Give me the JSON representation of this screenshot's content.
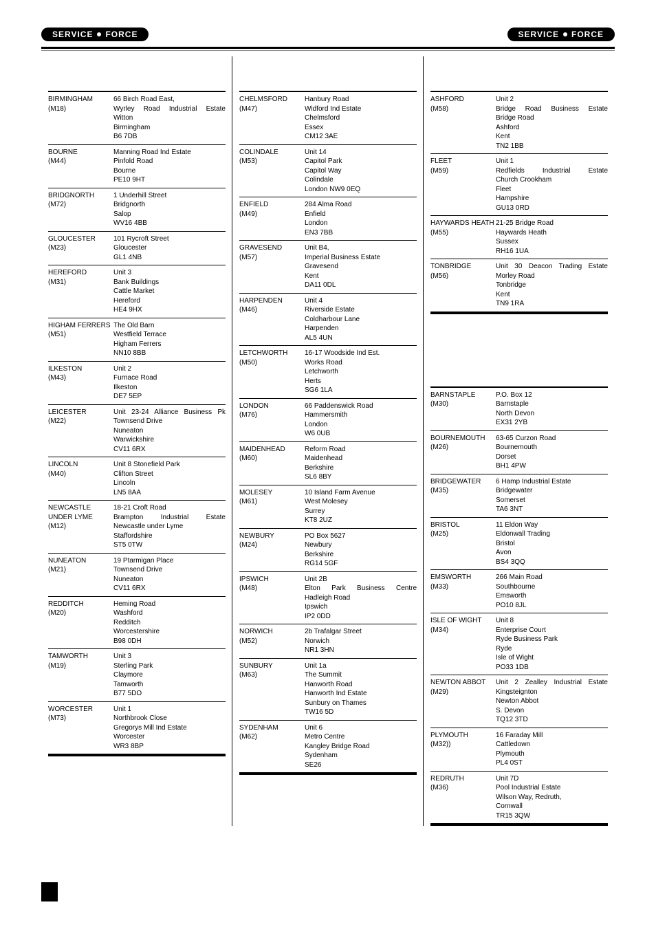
{
  "logo": {
    "text_left": "SERVICE",
    "text_right": "FORCE"
  },
  "columns": [
    {
      "sections": [
        {
          "entries": [
            {
              "name": "BIRMINGHAM",
              "code": "(M18)",
              "addr": [
                "66 Birch Road East,",
                "Wyrley Road Industrial Estate",
                "Witton",
                "Birmingham",
                "B6 7DB"
              ],
              "justify": [
                1
              ]
            },
            {
              "name": "BOURNE",
              "code": "(M44)",
              "addr": [
                "Manning Road Ind Estate",
                "Pinfold Road",
                "Bourne",
                "PE10 9HT"
              ]
            },
            {
              "name": "BRIDGNORTH",
              "code": "(M72)",
              "addr": [
                "1 Underhill Street",
                "Bridgnorth",
                "Salop",
                "WV16 4BB"
              ]
            },
            {
              "name": "GLOUCESTER",
              "code": "(M23)",
              "addr": [
                "101 Rycroft Street",
                "Gloucester",
                "GL1 4NB"
              ]
            },
            {
              "name": "HEREFORD",
              "code": "(M31)",
              "addr": [
                "Unit 3",
                "Bank Buildings",
                "Cattle Market",
                "Hereford",
                "HE4 9HX"
              ]
            },
            {
              "name": "HIGHAM FERRERS",
              "code": "(M51)",
              "addr": [
                "The Old Barn",
                "Westfield Terrace",
                "Higham Ferrers",
                "NN10 8BB"
              ]
            },
            {
              "name": "ILKESTON",
              "code": "(M43)",
              "addr": [
                "Unit 2",
                "Furnace Road",
                "Ilkeston",
                "DE7 5EP"
              ]
            },
            {
              "name": "LEICESTER",
              "code": "(M22)",
              "addr": [
                "Unit 23-24 Alliance Business Pk",
                "Townsend Drive",
                "Nuneaton",
                "Warwickshire",
                "CV11 6RX"
              ],
              "justify": [
                0
              ]
            },
            {
              "name": "LINCOLN",
              "code": "(M40)",
              "addr": [
                "Unit 8 Stonefield Park",
                "Clifton Street",
                "Lincoln",
                "LN5 8AA"
              ]
            },
            {
              "name": "NEWCASTLE UNDER LYME",
              "code": "(M12)",
              "addr": [
                "18-21 Croft Road",
                "Brampton Industrial Estate",
                "Newcastle under Lyme",
                "Staffordshire",
                "ST5 0TW"
              ],
              "justify": [
                1
              ]
            },
            {
              "name": "NUNEATON",
              "code": "(M21)",
              "addr": [
                "19 Ptarmigan Place",
                "Townsend Drive",
                "Nuneaton",
                "CV11 6RX"
              ]
            },
            {
              "name": "REDDITCH",
              "code": "(M20)",
              "addr": [
                "Heming Road",
                "Washford",
                "Redditch",
                "Worcestershire",
                "B98 0DH"
              ]
            },
            {
              "name": "TAMWORTH",
              "code": "(M19)",
              "addr": [
                "Unit 3",
                "Sterling Park",
                "Claymore",
                "Tamworth",
                "B77 5DO"
              ]
            },
            {
              "name": "WORCESTER",
              "code": "(M73)",
              "addr": [
                "Unit 1",
                "Northbrook Close",
                "Gregorys Mill Ind Estate",
                "Worcester",
                "WR3 8BP"
              ]
            }
          ]
        }
      ]
    },
    {
      "sections": [
        {
          "entries": [
            {
              "name": "CHELMSFORD",
              "code": "(M47)",
              "addr": [
                "Hanbury Road",
                "Widford Ind Estate",
                "Chelmsford",
                "Essex",
                "CM12 3AE"
              ]
            },
            {
              "name": "COLINDALE",
              "code": "(M53)",
              "addr": [
                "Unit 14",
                "Capitol Park",
                "Capitol Way",
                "Colindale",
                "London NW9 0EQ"
              ]
            },
            {
              "name": "ENFIELD",
              "code": "(M49)",
              "addr": [
                "284 Alma Road",
                "Enfield",
                "London",
                "EN3 7BB"
              ]
            },
            {
              "name": "GRAVESEND",
              "code": "(M57)",
              "addr": [
                "Unit B4,",
                "Imperial Business Estate",
                "Gravesend",
                "Kent",
                "DA11 0DL"
              ]
            },
            {
              "name": "HARPENDEN",
              "code": "(M46)",
              "addr": [
                "Unit 4",
                "Riverside Estate",
                "Coldharbour Lane",
                "Harpenden",
                "AL5 4UN"
              ]
            },
            {
              "name": "LETCHWORTH",
              "code": "(M50)",
              "addr": [
                "16-17 Woodside Ind Est.",
                "Works Road",
                "Letchworth",
                "Herts",
                "SG6 1LA"
              ]
            },
            {
              "name": "LONDON",
              "code": "(M76)",
              "addr": [
                "66 Paddenswick Road",
                "Hammersmith",
                "London",
                "W6 0UB"
              ]
            },
            {
              "name": "MAIDENHEAD",
              "code": "(M60)",
              "addr": [
                "Reform Road",
                "Maidenhead",
                "Berkshire",
                "SL6 8BY"
              ]
            },
            {
              "name": "MOLESEY",
              "code": "(M61)",
              "addr": [
                "10 Island Farm Avenue",
                "West Molesey",
                "Surrey",
                "KT8 2UZ"
              ]
            },
            {
              "name": "NEWBURY",
              "code": "(M24)",
              "addr": [
                "PO Box 5627",
                "Newbury",
                "Berkshire",
                "RG14 5GF"
              ]
            },
            {
              "name": "IPSWICH",
              "code": "(M48)",
              "addr": [
                "Unit 2B",
                "Elton Park Business Centre",
                "Hadleigh Road",
                "Ipswich",
                "IP2 0DD"
              ],
              "justify": [
                1
              ]
            },
            {
              "name": "NORWICH",
              "code": "(M52)",
              "addr": [
                "2b Trafalgar Street",
                "Norwich",
                "NR1 3HN"
              ]
            },
            {
              "name": "SUNBURY",
              "code": "(M63)",
              "addr": [
                "Unit 1a",
                "The Summit",
                "Hanworth Road",
                "Hanworth Ind Estate",
                "Sunbury on Thames",
                "TW16 5D"
              ]
            },
            {
              "name": "SYDENHAM",
              "code": "(M62)",
              "addr": [
                "Unit 6",
                "Metro Centre",
                "Kangley Bridge Road",
                "Sydenham",
                "SE26"
              ]
            }
          ]
        }
      ]
    },
    {
      "sections": [
        {
          "entries": [
            {
              "name": "ASHFORD",
              "code": "(M58)",
              "addr": [
                "Unit 2",
                "Bridge Road Business Estate",
                "Bridge Road",
                "Ashford",
                "Kent",
                "TN2 1BB"
              ],
              "justify": [
                1
              ]
            },
            {
              "name": "FLEET",
              "code": "(M59)",
              "addr": [
                "Unit 1",
                "Redfields Industrial Estate",
                "Church Crookham",
                "Fleet",
                "Hampshire",
                "GU13 0RD"
              ],
              "justify": [
                1
              ]
            },
            {
              "name": "HAYWARDS HEATH",
              "code": "(M55)",
              "addr": [
                "21-25 Bridge Road",
                "Haywards Heath",
                "Sussex",
                "RH16 1UA"
              ]
            },
            {
              "name": "TONBRIDGE",
              "code": "(M56)",
              "addr": [
                "Unit 30 Deacon Trading Estate",
                "Morley Road",
                "Tonbridge",
                "Kent",
                "TN9 1RA"
              ],
              "justify": [
                0
              ]
            }
          ]
        },
        {
          "spacer": true,
          "entries": [
            {
              "name": "BARNSTAPLE",
              "code": "(M30)",
              "addr": [
                "P.O. Box 12",
                "Barnstaple",
                "North Devon",
                "EX31 2YB"
              ]
            },
            {
              "name": "BOURNEMOUTH",
              "code": "(M26)",
              "addr": [
                "63-65 Curzon Road",
                "Bournemouth",
                "Dorset",
                "BH1 4PW"
              ]
            },
            {
              "name": "BRIDGEWATER",
              "code": "(M35)",
              "addr": [
                "6 Hamp Industrial Estate",
                "Bridgewater",
                "Somerset",
                "TA6 3NT"
              ]
            },
            {
              "name": "BRISTOL",
              "code": "(M25)",
              "addr": [
                "11 Eldon Way",
                "Eldonwall Trading",
                "Bristol",
                "Avon",
                "BS4 3QQ"
              ]
            },
            {
              "name": "EMSWORTH",
              "code": "(M33)",
              "addr": [
                "266 Main Road",
                "Southbourne",
                "Emsworth",
                "PO10 8JL"
              ]
            },
            {
              "name": "ISLE OF WIGHT",
              "code": "(M34)",
              "addr": [
                "Unit 8",
                "Enterprise Court",
                "Ryde Business Park",
                "Ryde",
                "Isle of Wight",
                "PO33 1DB"
              ]
            },
            {
              "name": "NEWTON ABBOT",
              "code": "(M29)",
              "addr": [
                "Unit 2 Zealley Industrial Estate",
                "Kingsteignton",
                "Newton Abbot",
                "S. Devon",
                "TQ12 3TD"
              ],
              "justify": [
                0
              ]
            },
            {
              "name": "PLYMOUTH",
              "code": "(M32))",
              "addr": [
                "16 Faraday Mill",
                "Cattledown",
                "Plymouth",
                "PL4 0ST"
              ]
            },
            {
              "name": "REDRUTH",
              "code": "(M36)",
              "addr": [
                "Unit 7D",
                "Pool Industrial Estate",
                "Wilson Way, Redruth,",
                "Cornwall",
                "TR15 3QW"
              ]
            }
          ]
        }
      ]
    }
  ]
}
